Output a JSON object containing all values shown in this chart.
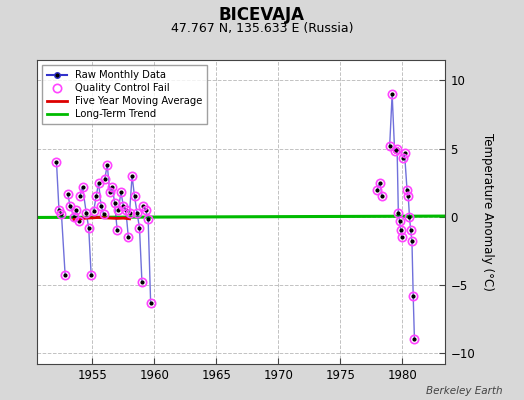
{
  "title": "BICEVAJA",
  "subtitle": "47.767 N, 135.633 E (Russia)",
  "ylabel": "Temperature Anomaly (°C)",
  "credit": "Berkeley Earth",
  "background_color": "#d8d8d8",
  "plot_bg_color": "#ffffff",
  "grid_color": "#bbbbbb",
  "xlim": [
    1950.5,
    1983.5
  ],
  "ylim": [
    -10.8,
    11.5
  ],
  "yticks": [
    -10,
    -5,
    0,
    5,
    10
  ],
  "xticks": [
    1955,
    1960,
    1965,
    1970,
    1975,
    1980
  ],
  "raw_color": "#3333cc",
  "raw_dot_color": "#000000",
  "qc_color": "#ff44ff",
  "ma_color": "#dd0000",
  "trend_color": "#00bb00",
  "legend_bg": "#ffffff",
  "segments": [
    {
      "x": [
        1952.1,
        1952.3,
        1952.5,
        1952.8
      ],
      "y": [
        4.0,
        0.5,
        0.2,
        -4.3
      ]
    },
    {
      "x": [
        1953.0,
        1953.2,
        1953.5,
        1953.7,
        1953.9
      ],
      "y": [
        1.7,
        0.8,
        0.0,
        0.5,
        -0.3
      ]
    },
    {
      "x": [
        1954.0,
        1954.2,
        1954.5,
        1954.7,
        1954.9
      ],
      "y": [
        1.5,
        2.2,
        0.3,
        -0.8,
        -4.3
      ]
    },
    {
      "x": [
        1955.1,
        1955.3,
        1955.5,
        1955.7,
        1955.9
      ],
      "y": [
        0.4,
        1.5,
        2.5,
        0.8,
        0.2
      ]
    },
    {
      "x": [
        1956.0,
        1956.2,
        1956.4,
        1956.6,
        1956.8,
        1957.0
      ],
      "y": [
        2.8,
        3.8,
        1.8,
        2.2,
        1.0,
        -1.0
      ]
    },
    {
      "x": [
        1957.1,
        1957.3,
        1957.5,
        1957.7,
        1957.9
      ],
      "y": [
        0.5,
        1.8,
        0.8,
        0.5,
        -1.5
      ]
    },
    {
      "x": [
        1958.0,
        1958.2,
        1958.4,
        1958.6,
        1958.8,
        1959.0
      ],
      "y": [
        0.3,
        3.0,
        1.5,
        0.3,
        -0.8,
        -4.8
      ]
    },
    {
      "x": [
        1959.1,
        1959.3,
        1959.5,
        1959.7
      ],
      "y": [
        0.8,
        0.5,
        -0.2,
        -6.3
      ]
    },
    {
      "x": [
        1978.0,
        1978.2,
        1978.4
      ],
      "y": [
        2.0,
        2.5,
        1.5
      ]
    },
    {
      "x": [
        1979.0,
        1979.2,
        1979.4,
        1979.6,
        1979.7,
        1979.8,
        1979.9,
        1980.0
      ],
      "y": [
        5.2,
        9.0,
        4.8,
        5.0,
        0.3,
        -0.3,
        -1.0,
        -1.5
      ]
    },
    {
      "x": [
        1980.1,
        1980.2,
        1980.4,
        1980.5,
        1980.6,
        1980.7,
        1980.8,
        1980.9,
        1981.0
      ],
      "y": [
        4.3,
        4.7,
        2.0,
        1.5,
        0.0,
        -1.0,
        -1.8,
        -5.8,
        -9.0
      ]
    }
  ],
  "qc_points": [
    [
      1952.1,
      4.0
    ],
    [
      1952.3,
      0.5
    ],
    [
      1952.5,
      0.2
    ],
    [
      1952.8,
      -4.3
    ],
    [
      1953.0,
      1.7
    ],
    [
      1953.2,
      0.8
    ],
    [
      1953.5,
      0.0
    ],
    [
      1953.7,
      0.5
    ],
    [
      1953.9,
      -0.3
    ],
    [
      1954.0,
      1.5
    ],
    [
      1954.2,
      2.2
    ],
    [
      1954.5,
      0.3
    ],
    [
      1954.7,
      -0.8
    ],
    [
      1954.9,
      -4.3
    ],
    [
      1955.1,
      0.4
    ],
    [
      1955.3,
      1.5
    ],
    [
      1955.5,
      2.5
    ],
    [
      1955.7,
      0.8
    ],
    [
      1955.9,
      0.2
    ],
    [
      1956.0,
      2.8
    ],
    [
      1956.2,
      3.8
    ],
    [
      1956.4,
      1.8
    ],
    [
      1956.6,
      2.2
    ],
    [
      1956.8,
      1.0
    ],
    [
      1957.0,
      -1.0
    ],
    [
      1957.1,
      0.5
    ],
    [
      1957.3,
      1.8
    ],
    [
      1957.5,
      0.8
    ],
    [
      1957.7,
      0.5
    ],
    [
      1957.9,
      -1.5
    ],
    [
      1958.0,
      0.3
    ],
    [
      1958.2,
      3.0
    ],
    [
      1958.4,
      1.5
    ],
    [
      1958.6,
      0.3
    ],
    [
      1958.8,
      -0.8
    ],
    [
      1959.0,
      -4.8
    ],
    [
      1959.1,
      0.8
    ],
    [
      1959.3,
      0.5
    ],
    [
      1959.5,
      -0.2
    ],
    [
      1959.7,
      -6.3
    ],
    [
      1978.0,
      2.0
    ],
    [
      1978.2,
      2.5
    ],
    [
      1978.4,
      1.5
    ],
    [
      1979.0,
      5.2
    ],
    [
      1979.2,
      9.0
    ],
    [
      1979.4,
      4.8
    ],
    [
      1979.6,
      5.0
    ],
    [
      1979.7,
      0.3
    ],
    [
      1979.8,
      -0.3
    ],
    [
      1979.9,
      -1.0
    ],
    [
      1980.0,
      -1.5
    ],
    [
      1980.1,
      4.3
    ],
    [
      1980.2,
      4.7
    ],
    [
      1980.4,
      2.0
    ],
    [
      1980.5,
      1.5
    ],
    [
      1980.6,
      0.0
    ],
    [
      1980.7,
      -1.0
    ],
    [
      1980.8,
      -1.8
    ],
    [
      1980.9,
      -5.8
    ],
    [
      1981.0,
      -9.0
    ]
  ],
  "five_year_ma_x": [
    1953.5,
    1954.0,
    1954.5,
    1955.0,
    1955.5,
    1956.0,
    1956.5,
    1957.0,
    1957.5,
    1958.0
  ],
  "five_year_ma_y": [
    -0.2,
    -0.15,
    -0.1,
    -0.08,
    -0.05,
    -0.08,
    -0.1,
    -0.12,
    -0.1,
    -0.15
  ],
  "long_term_trend_x": [
    1950.5,
    1983.5
  ],
  "long_term_trend_y": [
    -0.05,
    0.05
  ]
}
